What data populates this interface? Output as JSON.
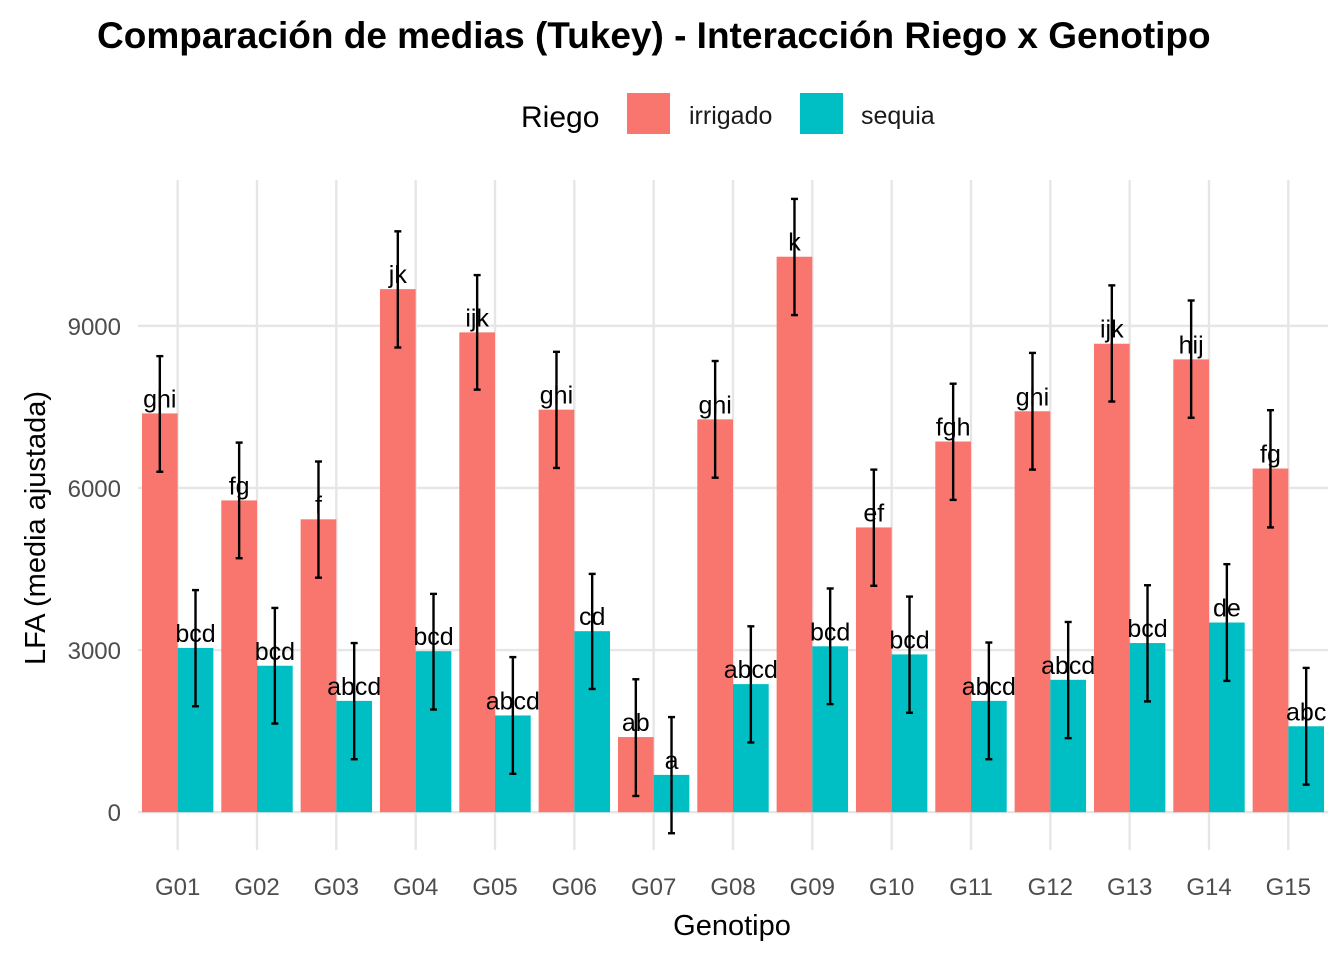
{
  "chart_data": {
    "type": "bar",
    "title": "Comparación de medias (Tukey) - Interacción Riego x Genotipo",
    "xlabel": "Genotipo",
    "ylabel": "LFA (media ajustada)",
    "ylim": [
      -700,
      11700
    ],
    "yticks": [
      0,
      3000,
      6000,
      9000
    ],
    "yticklabels": [
      "0",
      "3000",
      "6000",
      "9000"
    ],
    "grid": true,
    "legend": {
      "title": "Riego",
      "position": "top"
    },
    "categories": [
      "G01",
      "G02",
      "G03",
      "G04",
      "G05",
      "G06",
      "G07",
      "G08",
      "G09",
      "G10",
      "G11",
      "G12",
      "G13",
      "G14",
      "G15"
    ],
    "series": [
      {
        "name": "irrigado",
        "color": "#F8766D",
        "values": [
          7380,
          5770,
          5420,
          9680,
          8880,
          7450,
          1390,
          7270,
          10280,
          5270,
          6860,
          7420,
          8670,
          8380,
          6360
        ],
        "err_low": [
          6300,
          4700,
          4340,
          8600,
          7820,
          6370,
          300,
          6190,
          9200,
          4190,
          5780,
          6340,
          7600,
          7300,
          5270
        ],
        "err_high": [
          8440,
          6840,
          6490,
          10750,
          9940,
          8520,
          2460,
          8350,
          11350,
          6340,
          7930,
          8500,
          9750,
          9470,
          7440
        ],
        "letters": [
          "ghi",
          "fg",
          "f",
          "jk",
          "ijk",
          "ghi",
          "ab",
          "ghi",
          "k",
          "ef",
          "fgh",
          "ghi",
          "ijk",
          "hij",
          "fg"
        ]
      },
      {
        "name": "sequia",
        "color": "#00BFC4",
        "values": [
          3040,
          2710,
          2060,
          2980,
          1790,
          3350,
          690,
          2370,
          3070,
          2920,
          2060,
          2450,
          3130,
          3510,
          1590
        ],
        "err_low": [
          1960,
          1640,
          980,
          1900,
          710,
          2280,
          -390,
          1290,
          2000,
          1840,
          980,
          1370,
          2050,
          2430,
          510
        ],
        "err_high": [
          4110,
          3780,
          3130,
          4040,
          2870,
          4410,
          1760,
          3440,
          4140,
          3990,
          3140,
          3520,
          4200,
          4590,
          2670
        ],
        "letters": [
          "bcd",
          "bcd",
          "abcd",
          "bcd",
          "abcd",
          "cd",
          "a",
          "abcd",
          "bcd",
          "bcd",
          "abcd",
          "abcd",
          "bcd",
          "de",
          "abc"
        ]
      }
    ]
  }
}
